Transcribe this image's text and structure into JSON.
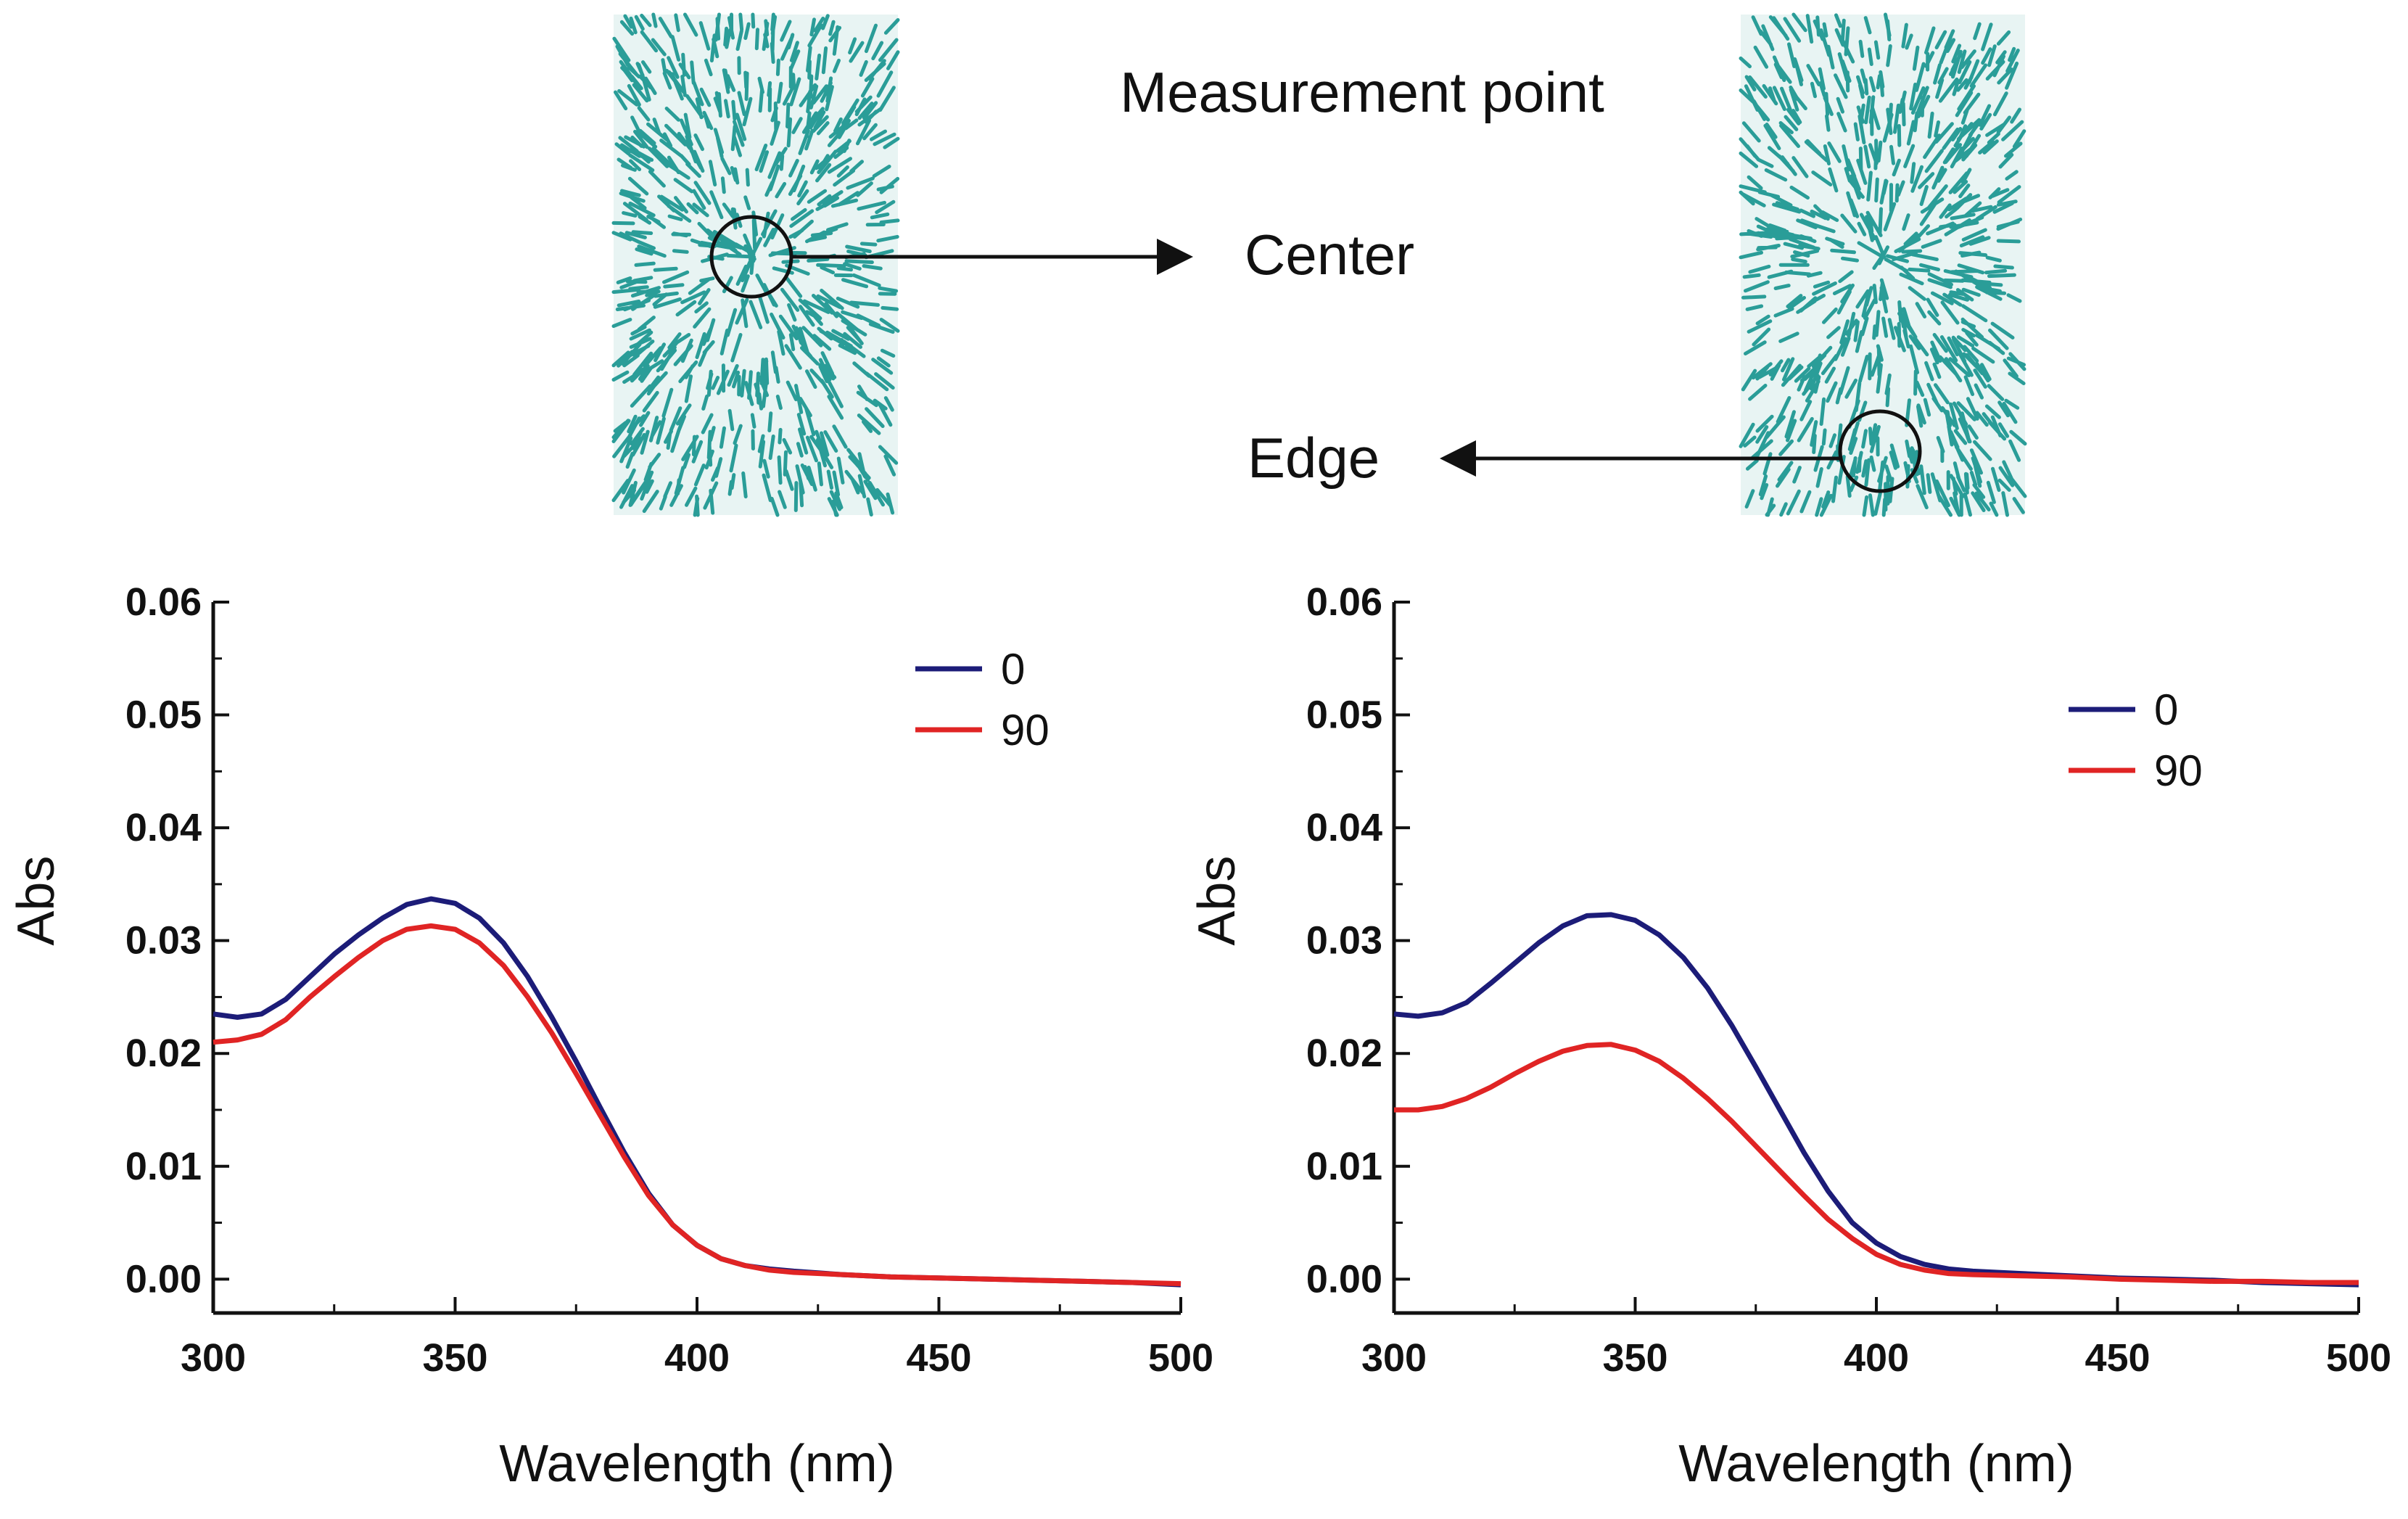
{
  "diagram": {
    "header": "Measurement point",
    "center_label": "Center",
    "edge_label": "Edge",
    "texture_color": "#2a9d98"
  },
  "chart_data": [
    {
      "type": "line",
      "xlabel": "Wavelength (nm)",
      "ylabel": "Abs",
      "xlim": [
        300,
        500
      ],
      "ylim": [
        -0.003,
        0.06
      ],
      "xticks": [
        "300",
        "350",
        "400",
        "450",
        "500"
      ],
      "yticks": [
        "0.00",
        "0.01",
        "0.02",
        "0.03",
        "0.04",
        "0.05",
        "0.06"
      ],
      "legend_position": "top-right",
      "series": [
        {
          "name": "0",
          "color": "#1c1c78",
          "x": [
            300,
            305,
            310,
            315,
            320,
            325,
            330,
            335,
            340,
            345,
            350,
            355,
            360,
            365,
            370,
            375,
            380,
            385,
            390,
            395,
            400,
            405,
            410,
            415,
            420,
            430,
            440,
            450,
            460,
            470,
            480,
            490,
            500
          ],
          "y": [
            0.0235,
            0.0232,
            0.0235,
            0.0248,
            0.0268,
            0.0288,
            0.0305,
            0.032,
            0.0332,
            0.0337,
            0.0333,
            0.032,
            0.0298,
            0.0268,
            0.0232,
            0.0193,
            0.0152,
            0.0112,
            0.0076,
            0.0048,
            0.003,
            0.0018,
            0.0012,
            0.0009,
            0.0007,
            0.0004,
            0.0002,
            0.0001,
            0.0,
            -0.0001,
            -0.0002,
            -0.0003,
            -0.0005
          ]
        },
        {
          "name": "90",
          "color": "#e02424",
          "x": [
            300,
            305,
            310,
            315,
            320,
            325,
            330,
            335,
            340,
            345,
            350,
            355,
            360,
            365,
            370,
            375,
            380,
            385,
            390,
            395,
            400,
            405,
            410,
            415,
            420,
            430,
            440,
            450,
            460,
            470,
            480,
            490,
            500
          ],
          "y": [
            0.021,
            0.0212,
            0.0217,
            0.023,
            0.025,
            0.0268,
            0.0285,
            0.03,
            0.031,
            0.0313,
            0.031,
            0.0298,
            0.0278,
            0.025,
            0.0218,
            0.0182,
            0.0145,
            0.0108,
            0.0074,
            0.0048,
            0.003,
            0.0018,
            0.0012,
            0.0008,
            0.0006,
            0.0004,
            0.0002,
            0.0001,
            0.0,
            -0.0001,
            -0.0002,
            -0.0003,
            -0.0004
          ]
        }
      ]
    },
    {
      "type": "line",
      "xlabel": "Wavelength (nm)",
      "ylabel": "Abs",
      "xlim": [
        300,
        500
      ],
      "ylim": [
        -0.003,
        0.06
      ],
      "xticks": [
        "300",
        "350",
        "400",
        "450",
        "500"
      ],
      "yticks": [
        "0.00",
        "0.01",
        "0.02",
        "0.03",
        "0.04",
        "0.05",
        "0.06"
      ],
      "legend_position": "top-right",
      "series": [
        {
          "name": "0",
          "color": "#1c1c78",
          "x": [
            300,
            305,
            310,
            315,
            320,
            325,
            330,
            335,
            340,
            345,
            350,
            355,
            360,
            365,
            370,
            375,
            380,
            385,
            390,
            395,
            400,
            405,
            410,
            415,
            420,
            430,
            440,
            450,
            460,
            470,
            480,
            490,
            500
          ],
          "y": [
            0.0235,
            0.0233,
            0.0236,
            0.0245,
            0.0262,
            0.028,
            0.0298,
            0.0313,
            0.0322,
            0.0323,
            0.0318,
            0.0305,
            0.0285,
            0.0258,
            0.0225,
            0.0188,
            0.015,
            0.0112,
            0.0078,
            0.005,
            0.0032,
            0.002,
            0.0013,
            0.0009,
            0.0007,
            0.0005,
            0.0003,
            0.0001,
            0.0,
            -0.0001,
            -0.0003,
            -0.0004,
            -0.0005
          ]
        },
        {
          "name": "90",
          "color": "#e02424",
          "x": [
            300,
            305,
            310,
            315,
            320,
            325,
            330,
            335,
            340,
            345,
            350,
            355,
            360,
            365,
            370,
            375,
            380,
            385,
            390,
            395,
            400,
            405,
            410,
            415,
            420,
            430,
            440,
            450,
            460,
            470,
            480,
            490,
            500
          ],
          "y": [
            0.015,
            0.015,
            0.0153,
            0.016,
            0.017,
            0.0182,
            0.0193,
            0.0202,
            0.0207,
            0.0208,
            0.0203,
            0.0193,
            0.0178,
            0.016,
            0.014,
            0.0118,
            0.0096,
            0.0074,
            0.0053,
            0.0036,
            0.0022,
            0.0013,
            0.0008,
            0.0005,
            0.0004,
            0.0003,
            0.0002,
            0.0,
            -0.0001,
            -0.0002,
            -0.0002,
            -0.0003,
            -0.0003
          ]
        }
      ]
    }
  ]
}
